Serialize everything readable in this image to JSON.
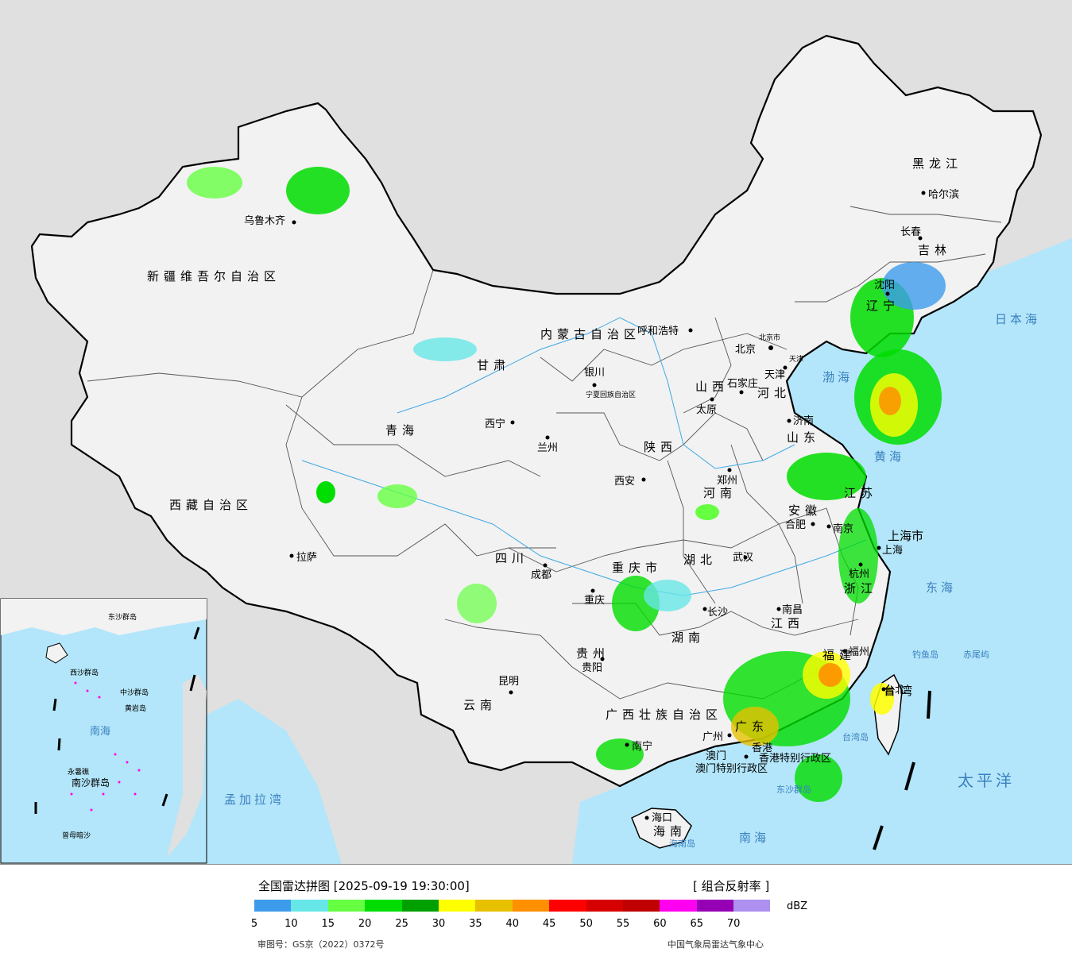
{
  "title": "全国雷达拼图 [2025-09-19 19:30:00]",
  "product": "[ 组合反射率 ]",
  "unit": "dBZ",
  "review_no": "审图号：GS京（2022）0372号",
  "agency": "中国气象局雷达气象中心",
  "legend": {
    "colors": [
      "#3d9bec",
      "#66e6e6",
      "#66ff42",
      "#00dd00",
      "#00a000",
      "#ffff00",
      "#e7c000",
      "#ff9000",
      "#ff0000",
      "#d60000",
      "#c00000",
      "#ff00f0",
      "#9600b4",
      "#ad90f0"
    ],
    "ticks": [
      "5",
      "10",
      "15",
      "20",
      "25",
      "30",
      "35",
      "40",
      "45",
      "50",
      "55",
      "60",
      "65",
      "70"
    ]
  },
  "colors": {
    "land": "#f2f2f2",
    "sea": "#b3e6fa",
    "foreign": "#e0e0e0",
    "border": "#000000"
  },
  "region_labels": [
    "新疆维吾尔自治区",
    "西藏自治区",
    "青海",
    "甘肃",
    "内蒙古自治区",
    "黑龙江",
    "吉林",
    "辽宁",
    "河北",
    "山西",
    "陕西",
    "宁夏回族自治区",
    "四川",
    "重庆市",
    "云南",
    "贵州",
    "广西壮族自治区",
    "广东",
    "海南",
    "湖南",
    "湖北",
    "河南",
    "山东",
    "江苏",
    "安徽",
    "浙江",
    "江西",
    "福建",
    "台湾",
    "上海市",
    "香港特别行政区",
    "澳门特别行政区",
    "北京市",
    "天津"
  ],
  "cities": [
    "乌鲁木齐",
    "拉萨",
    "西宁",
    "兰州",
    "银川",
    "呼和浩特",
    "北京",
    "天津",
    "石家庄",
    "太原",
    "济南",
    "郑州",
    "西安",
    "成都",
    "重庆",
    "贵阳",
    "昆明",
    "南宁",
    "广州",
    "长沙",
    "武汉",
    "南昌",
    "合肥",
    "南京",
    "上海",
    "杭州",
    "福州",
    "台北",
    "哈尔滨",
    "长春",
    "沈阳",
    "海口",
    "香港",
    "澳门"
  ],
  "sea_labels": [
    "日本海",
    "渤海",
    "黄海",
    "东海",
    "太平洋",
    "南海",
    "孟加拉湾",
    "台湾岛",
    "钓鱼岛",
    "赤尾屿",
    "东沙群岛",
    "海南岛"
  ],
  "inset_labels": [
    "南海",
    "西沙群岛",
    "中沙群岛",
    "东沙群岛",
    "黄岩岛",
    "永暑礁",
    "南沙群岛",
    "曾母暗沙"
  ]
}
